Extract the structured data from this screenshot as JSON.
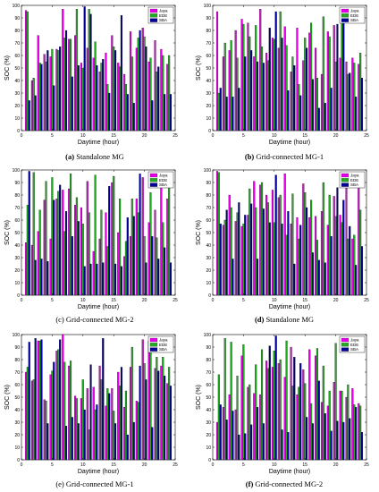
{
  "legend": [
    "Jaya",
    "EDE",
    "SBA"
  ],
  "colors": {
    "Jaya": "#e800e8",
    "EDE": "#22aa22",
    "SBA": "#000099"
  },
  "xlabel": "Daytime (hour)",
  "ylabel": "SOC (%)",
  "xticks": [
    "0",
    "5",
    "10",
    "15",
    "20",
    "25"
  ],
  "yticks": [
    "0",
    "10",
    "20",
    "30",
    "40",
    "50",
    "60",
    "70",
    "80",
    "90",
    "100"
  ],
  "chart_data": [
    {
      "type": "bar",
      "label": "(a)",
      "caption": "Standalone MG",
      "xlim": [
        0,
        25
      ],
      "ylim": [
        0,
        100
      ],
      "categories": [
        1,
        2,
        3,
        4,
        5,
        6,
        7,
        8,
        9,
        10,
        11,
        12,
        13,
        14,
        15,
        16,
        17,
        18,
        19,
        20,
        21,
        22,
        23,
        24
      ],
      "series": [
        {
          "name": "Jaya",
          "values": [
            96,
            40,
            76,
            61,
            59,
            65,
            97,
            73,
            76,
            54,
            66,
            58,
            47,
            62,
            76,
            54,
            45,
            79,
            66,
            82,
            55,
            72,
            65,
            53
          ]
        },
        {
          "name": "EDE",
          "values": [
            95,
            42,
            54,
            55,
            65,
            64,
            74,
            73,
            97,
            50,
            97,
            71,
            54,
            37,
            67,
            51,
            37,
            59,
            74,
            75,
            58,
            47,
            60,
            60
          ]
        },
        {
          "name": "SBA",
          "values": [
            24,
            28,
            53,
            64,
            36,
            67,
            80,
            43,
            52,
            99,
            93,
            52,
            57,
            30,
            64,
            92,
            29,
            22,
            80,
            67,
            24,
            51,
            29,
            29
          ]
        }
      ]
    },
    {
      "type": "bar",
      "label": "(b)",
      "caption": "Grid-connected MG-1",
      "xlim": [
        0,
        25
      ],
      "ylim": [
        0,
        100
      ],
      "categories": [
        1,
        2,
        3,
        4,
        5,
        6,
        7,
        8,
        9,
        10,
        11,
        12,
        13,
        14,
        15,
        16,
        17,
        18,
        19,
        20,
        21,
        22,
        23,
        24
      ],
      "series": [
        {
          "name": "Jaya",
          "values": [
            95,
            59,
            64,
            80,
            89,
            86,
            59,
            97,
            62,
            74,
            66,
            83,
            47,
            82,
            56,
            78,
            66,
            45,
            79,
            84,
            58,
            55,
            58,
            53
          ]
        },
        {
          "name": "EDE",
          "values": [
            30,
            70,
            72,
            58,
            85,
            75,
            84,
            67,
            56,
            73,
            95,
            68,
            59,
            37,
            74,
            86,
            42,
            91,
            75,
            55,
            86,
            45,
            54,
            62
          ]
        },
        {
          "name": "SBA",
          "values": [
            34,
            27,
            27,
            34,
            59,
            64,
            55,
            54,
            82,
            95,
            74,
            32,
            52,
            28,
            66,
            41,
            18,
            22,
            34,
            85,
            89,
            46,
            27,
            42
          ]
        }
      ]
    },
    {
      "type": "bar",
      "label": "(c)",
      "caption": "Grid-connected MG-2",
      "xlim": [
        0,
        25
      ],
      "ylim": [
        0,
        100
      ],
      "categories": [
        1,
        2,
        3,
        4,
        5,
        6,
        7,
        8,
        9,
        10,
        11,
        12,
        13,
        14,
        15,
        16,
        17,
        18,
        19,
        20,
        21,
        22,
        23,
        24
      ],
      "series": [
        {
          "name": "Jaya",
          "values": [
            42,
            40,
            51,
            76,
            45,
            77,
            84,
            85,
            72,
            70,
            91,
            35,
            45,
            66,
            90,
            50,
            31,
            47,
            77,
            94,
            58,
            68,
            88,
            77
          ]
        },
        {
          "name": "EDE",
          "values": [
            72,
            98,
            68,
            91,
            94,
            83,
            51,
            97,
            78,
            57,
            66,
            96,
            68,
            39,
            95,
            77,
            43,
            77,
            66,
            47,
            82,
            46,
            58,
            87
          ]
        },
        {
          "name": "SBA",
          "values": [
            99,
            28,
            29,
            27,
            76,
            88,
            67,
            47,
            59,
            23,
            25,
            25,
            26,
            87,
            25,
            23,
            62,
            63,
            97,
            26,
            47,
            29,
            38,
            26
          ]
        }
      ]
    },
    {
      "type": "bar",
      "label": "(d)",
      "caption": "Standalone MG",
      "xlim": [
        0,
        25
      ],
      "ylim": [
        0,
        100
      ],
      "categories": [
        1,
        2,
        3,
        4,
        5,
        6,
        7,
        8,
        9,
        10,
        11,
        12,
        13,
        14,
        15,
        16,
        17,
        18,
        19,
        20,
        21,
        22,
        23,
        24
      ],
      "series": [
        {
          "name": "Jaya",
          "values": [
            99,
            56,
            80,
            59,
            55,
            64,
            91,
            88,
            80,
            84,
            78,
            97,
            57,
            62,
            89,
            62,
            63,
            67,
            56,
            79,
            64,
            90,
            45,
            87
          ]
        },
        {
          "name": "EDE",
          "values": [
            98,
            60,
            70,
            66,
            57,
            85,
            70,
            90,
            74,
            58,
            80,
            48,
            81,
            45,
            82,
            76,
            44,
            90,
            80,
            63,
            58,
            45,
            48,
            68
          ]
        },
        {
          "name": "SBA",
          "values": [
            57,
            68,
            29,
            74,
            64,
            73,
            29,
            69,
            58,
            96,
            57,
            67,
            25,
            56,
            70,
            34,
            28,
            26,
            47,
            86,
            76,
            55,
            24,
            39
          ]
        }
      ]
    },
    {
      "type": "bar",
      "label": "(e)",
      "caption": "Grid-connected MG-1",
      "xlim": [
        0,
        25
      ],
      "ylim": [
        0,
        100
      ],
      "categories": [
        1,
        2,
        3,
        4,
        5,
        6,
        7,
        8,
        9,
        10,
        11,
        12,
        13,
        14,
        15,
        16,
        17,
        18,
        19,
        20,
        21,
        22,
        23,
        24
      ],
      "series": [
        {
          "name": "Jaya",
          "values": [
            70,
            63,
            95,
            48,
            68,
            87,
            100,
            75,
            51,
            49,
            57,
            58,
            75,
            43,
            57,
            70,
            42,
            74,
            47,
            96,
            95,
            73,
            75,
            61
          ]
        },
        {
          "name": "EDE",
          "values": [
            74,
            64,
            95,
            47,
            71,
            88,
            78,
            79,
            49,
            64,
            24,
            40,
            64,
            57,
            39,
            59,
            55,
            90,
            46,
            77,
            88,
            82,
            82,
            74
          ]
        },
        {
          "name": "SBA",
          "values": [
            94,
            97,
            96,
            29,
            78,
            96,
            27,
            34,
            29,
            40,
            76,
            44,
            97,
            53,
            29,
            74,
            20,
            30,
            75,
            64,
            26,
            71,
            67,
            59
          ]
        }
      ]
    },
    {
      "type": "bar",
      "label": "(f)",
      "caption": "Grid-connected MG-2",
      "xlim": [
        0,
        25
      ],
      "ylim": [
        0,
        100
      ],
      "categories": [
        1,
        2,
        3,
        4,
        5,
        6,
        7,
        8,
        9,
        10,
        11,
        12,
        13,
        14,
        15,
        16,
        17,
        18,
        19,
        20,
        21,
        22,
        23,
        24
      ],
      "series": [
        {
          "name": "Jaya",
          "values": [
            30,
            42,
            52,
            40,
            83,
            58,
            53,
            52,
            79,
            74,
            77,
            66,
            90,
            52,
            72,
            88,
            83,
            46,
            43,
            62,
            55,
            50,
            57,
            45
          ]
        },
        {
          "name": "EDE",
          "values": [
            68,
            97,
            94,
            67,
            92,
            60,
            76,
            88,
            73,
            87,
            80,
            95,
            59,
            58,
            61,
            45,
            89,
            75,
            55,
            93,
            55,
            60,
            44,
            43
          ]
        },
        {
          "name": "SBA",
          "values": [
            44,
            32,
            39,
            20,
            21,
            28,
            42,
            29,
            91,
            99,
            24,
            22,
            82,
            77,
            34,
            29,
            63,
            37,
            23,
            31,
            30,
            33,
            42,
            22
          ]
        }
      ]
    }
  ]
}
